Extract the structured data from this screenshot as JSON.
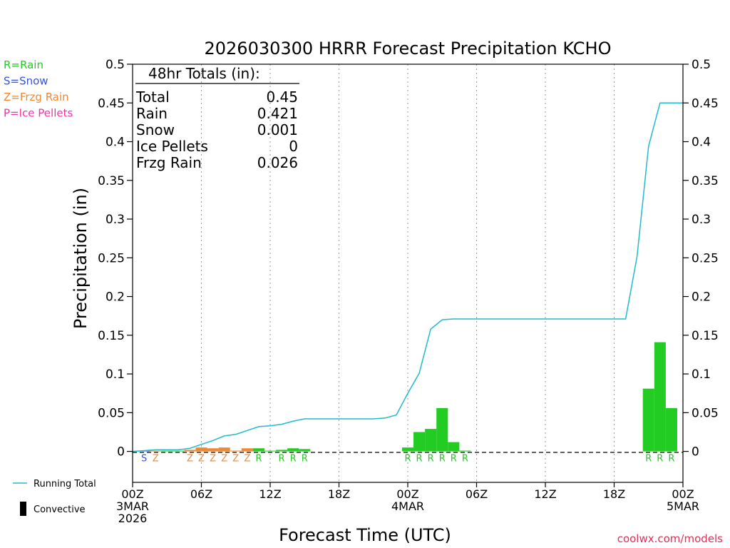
{
  "chart_data": {
    "type": "bar",
    "title": "2026030300 HRRR Forecast Precipitation KCHO",
    "xlabel": "Forecast Time (UTC)",
    "ylabel": "Precipitation (in)",
    "xlim_hours": [
      0,
      48
    ],
    "ylim": [
      -0.04,
      0.5
    ],
    "y_ticks": [
      0,
      0.05,
      0.1,
      0.15,
      0.2,
      0.25,
      0.3,
      0.35,
      0.4,
      0.45,
      0.5
    ],
    "y_tick_labels": [
      "0",
      "0.05",
      "0.1",
      "0.15",
      "0.2",
      "0.25",
      "0.3",
      "0.35",
      "0.4",
      "0.45",
      "0.5"
    ],
    "x_ticks": [
      {
        "hour": 0,
        "lines": [
          "00Z",
          "3MAR",
          "2026"
        ]
      },
      {
        "hour": 6,
        "lines": [
          "06Z"
        ]
      },
      {
        "hour": 12,
        "lines": [
          "12Z"
        ]
      },
      {
        "hour": 18,
        "lines": [
          "18Z"
        ]
      },
      {
        "hour": 24,
        "lines": [
          "00Z",
          "4MAR"
        ]
      },
      {
        "hour": 30,
        "lines": [
          "06Z"
        ]
      },
      {
        "hour": 36,
        "lines": [
          "12Z"
        ]
      },
      {
        "hour": 42,
        "lines": [
          "18Z"
        ]
      },
      {
        "hour": 48,
        "lines": [
          "00Z",
          "5MAR"
        ]
      }
    ],
    "gridlines": "vertical-dotted",
    "type_legend": [
      {
        "code": "R",
        "text": "R=Rain",
        "color": "#22cc22"
      },
      {
        "code": "S",
        "text": "S=Snow",
        "color": "#3355dd"
      },
      {
        "code": "Z",
        "text": "Z=Frzg Rain",
        "color": "#ee8833"
      },
      {
        "code": "P",
        "text": "P=Ice Pellets",
        "color": "#ee33aa"
      }
    ],
    "series_legend": [
      {
        "name": "Running Total",
        "color": "#22bbcc",
        "kind": "line"
      },
      {
        "name": "Convective",
        "color": "#000000",
        "kind": "bar"
      }
    ],
    "totals": {
      "header": "48hr Totals (in):",
      "rows": [
        {
          "label": "Total",
          "value": "0.45"
        },
        {
          "label": "Rain",
          "value": "0.421"
        },
        {
          "label": "Snow",
          "value": "0.001"
        },
        {
          "label": "Ice Pellets",
          "value": "0"
        },
        {
          "label": "Frzg Rain",
          "value": "0.026"
        }
      ]
    },
    "bars": [
      {
        "hour": 1,
        "value": 0.0005,
        "type": "S"
      },
      {
        "hour": 2,
        "value": 0.0005,
        "type": "Z"
      },
      {
        "hour": 3,
        "value": 0.0005,
        "type": ""
      },
      {
        "hour": 4,
        "value": 0.0005,
        "type": ""
      },
      {
        "hour": 5,
        "value": 0.002,
        "type": "Z"
      },
      {
        "hour": 6,
        "value": 0.005,
        "type": "Z"
      },
      {
        "hour": 7,
        "value": 0.004,
        "type": "Z"
      },
      {
        "hour": 8,
        "value": 0.005,
        "type": "Z"
      },
      {
        "hour": 9,
        "value": 0.001,
        "type": "Z"
      },
      {
        "hour": 10,
        "value": 0.004,
        "type": "Z"
      },
      {
        "hour": 11,
        "value": 0.004,
        "type": "R"
      },
      {
        "hour": 12,
        "value": 0.0005,
        "type": ""
      },
      {
        "hour": 13,
        "value": 0.002,
        "type": "R"
      },
      {
        "hour": 14,
        "value": 0.004,
        "type": "R"
      },
      {
        "hour": 15,
        "value": 0.003,
        "type": "R"
      },
      {
        "hour": 24,
        "value": 0.005,
        "type": "R"
      },
      {
        "hour": 25,
        "value": 0.025,
        "type": "R"
      },
      {
        "hour": 26,
        "value": 0.029,
        "type": "R"
      },
      {
        "hour": 27,
        "value": 0.056,
        "type": "R"
      },
      {
        "hour": 28,
        "value": 0.012,
        "type": "R"
      },
      {
        "hour": 29,
        "value": 0.001,
        "type": "R"
      },
      {
        "hour": 45,
        "value": 0.081,
        "type": "R"
      },
      {
        "hour": 46,
        "value": 0.141,
        "type": "R"
      },
      {
        "hour": 47,
        "value": 0.056,
        "type": "R"
      }
    ],
    "running_total": {
      "name": "Running Total",
      "hours": [
        1,
        2,
        3,
        4,
        5,
        6,
        7,
        8,
        9,
        10,
        11,
        12,
        13,
        14,
        15,
        16,
        17,
        18,
        19,
        20,
        21,
        22,
        23,
        24,
        25,
        26,
        27,
        28,
        29,
        30,
        31,
        32,
        33,
        34,
        35,
        36,
        37,
        38,
        39,
        40,
        41,
        42,
        43,
        44,
        45,
        46,
        47,
        48
      ],
      "values": [
        0.001,
        0.002,
        0.002,
        0.002,
        0.004,
        0.009,
        0.014,
        0.02,
        0.022,
        0.027,
        0.032,
        0.033,
        0.035,
        0.039,
        0.042,
        0.042,
        0.042,
        0.042,
        0.042,
        0.042,
        0.042,
        0.043,
        0.047,
        0.075,
        0.101,
        0.158,
        0.17,
        0.171,
        0.171,
        0.171,
        0.171,
        0.171,
        0.171,
        0.171,
        0.171,
        0.171,
        0.171,
        0.171,
        0.171,
        0.171,
        0.171,
        0.171,
        0.171,
        0.252,
        0.394,
        0.45,
        0.45,
        0.45
      ]
    },
    "credit": "coolwx.com/models"
  }
}
